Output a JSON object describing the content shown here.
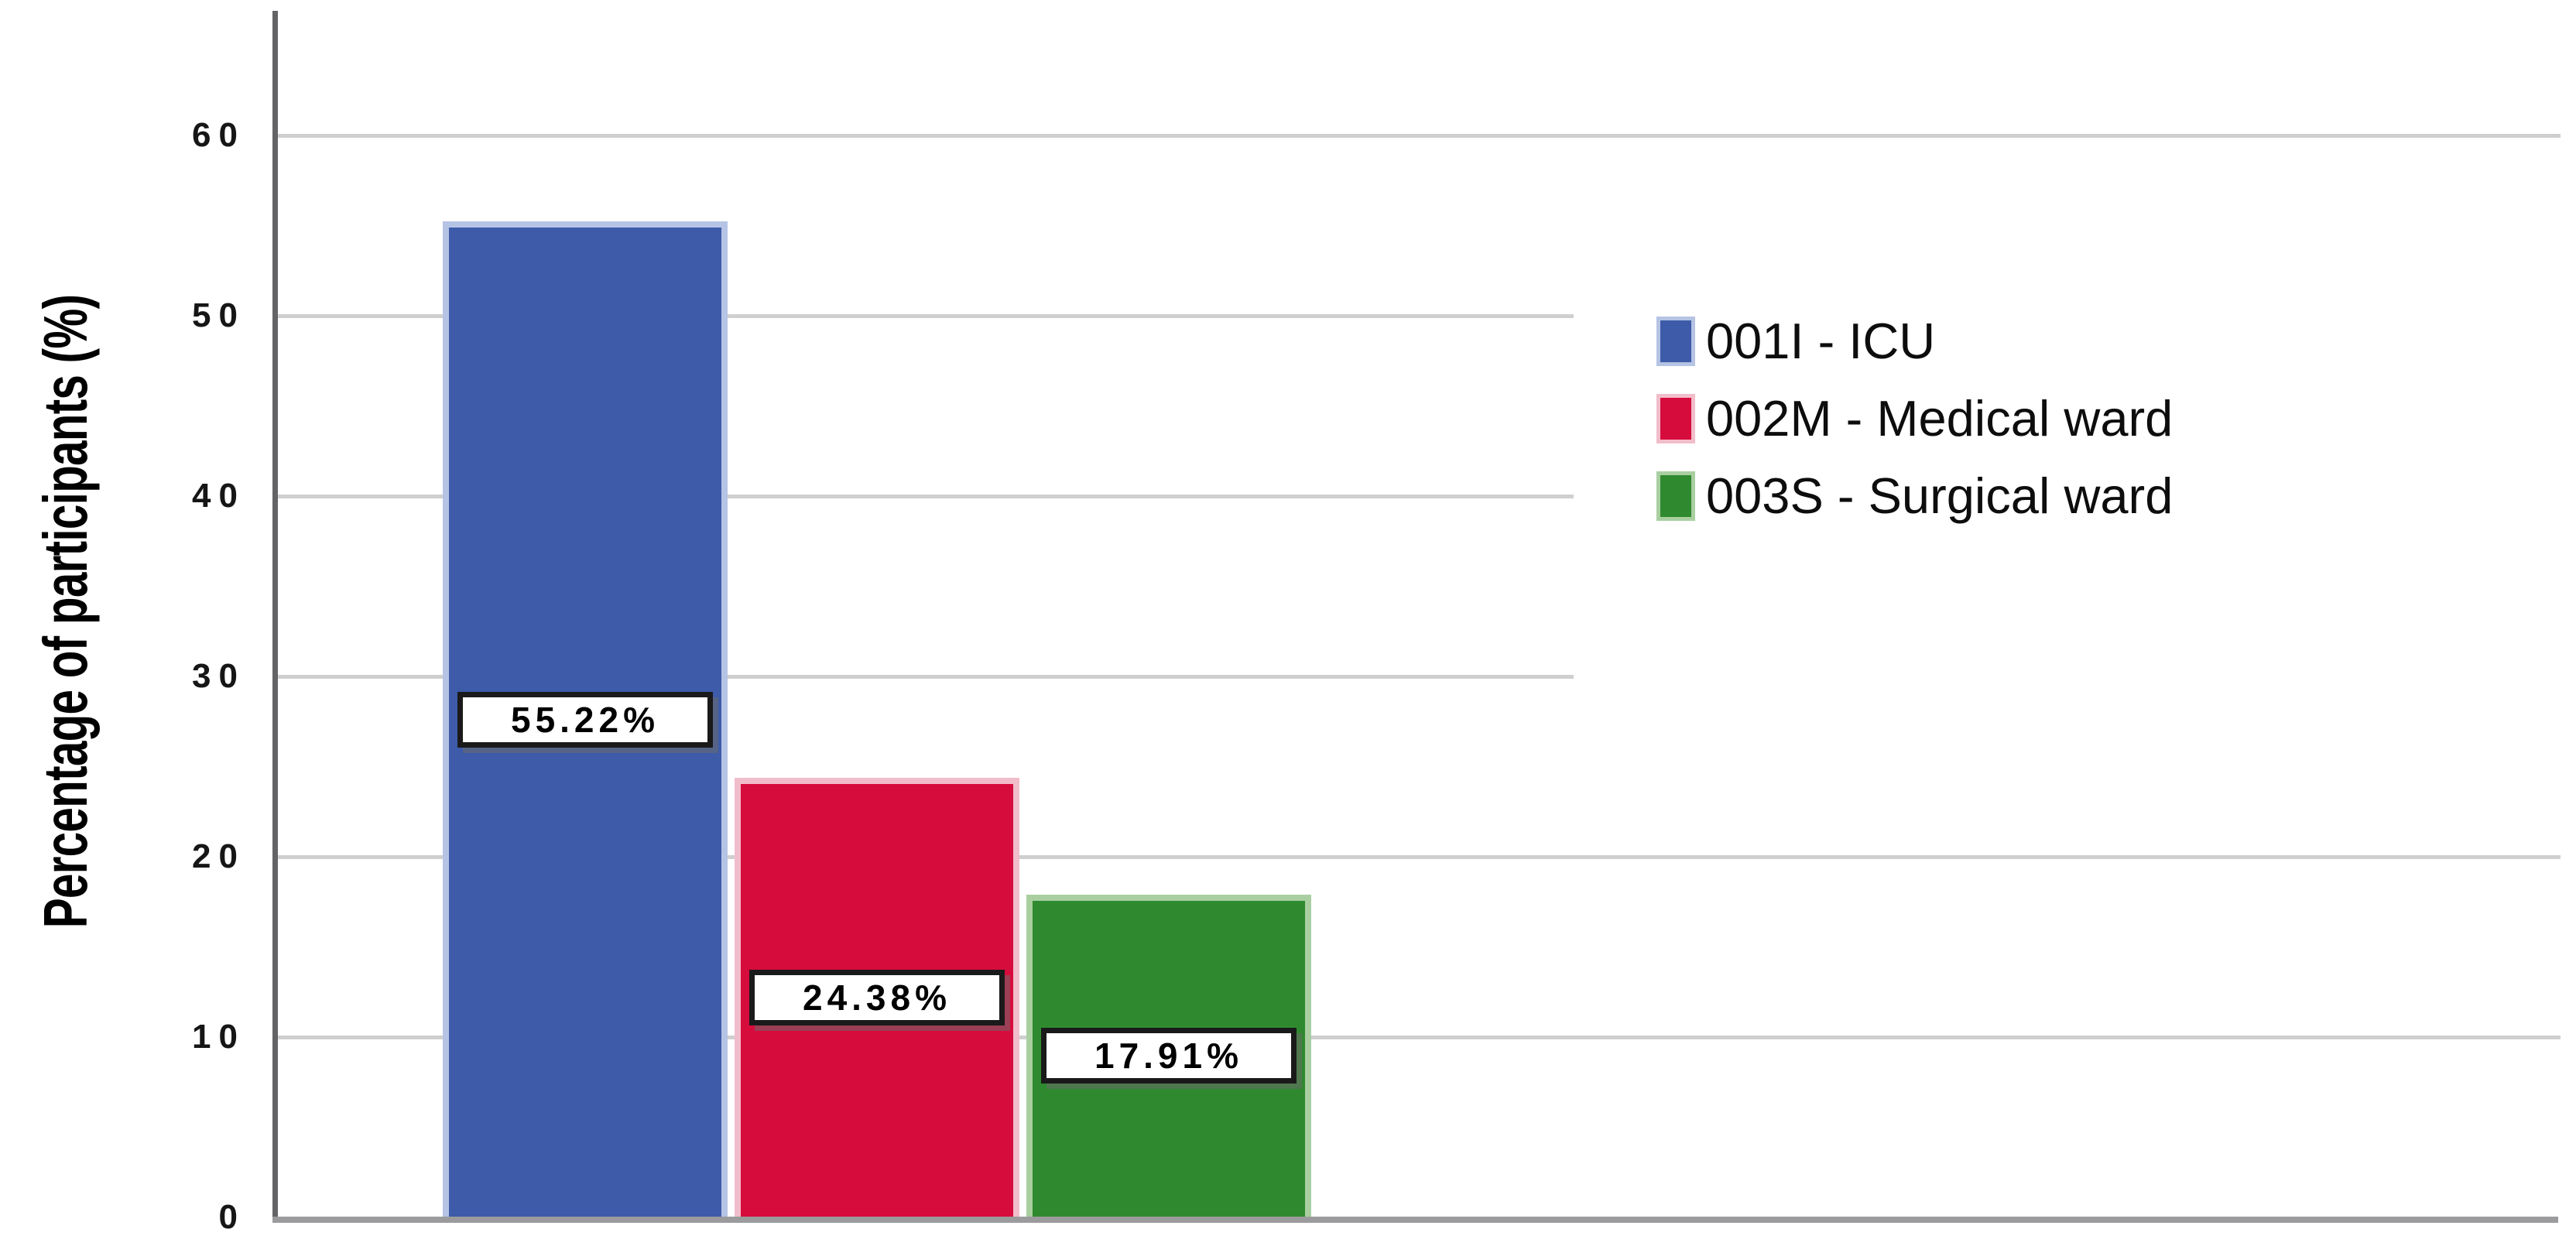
{
  "chart_data": {
    "type": "bar",
    "title": "",
    "xlabel": "",
    "ylabel": "Percentage of participants (%)",
    "ylim": [
      0,
      65
    ],
    "yticks": [
      0,
      10,
      20,
      30,
      40,
      50,
      60
    ],
    "ytick_labels": [
      "0",
      "10",
      "20",
      "30",
      "40",
      "50",
      "60"
    ],
    "grid": true,
    "legend_position": "right",
    "categories": [
      "001I - ICU",
      "002M - Medical ward",
      "003S - Surgical ward"
    ],
    "values": [
      55.22,
      24.38,
      17.91
    ],
    "bars": [
      {
        "category": "001I - ICU",
        "value": 55.22,
        "value_label": "55.22%",
        "color": "#3D5BA9",
        "edge_color": "#B5C3E4"
      },
      {
        "category": "002M - Medical ward",
        "value": 24.38,
        "value_label": "24.38%",
        "color": "#D60C3C",
        "edge_color": "#F2BDCB"
      },
      {
        "category": "003S - Surgical ward",
        "value": 17.91,
        "value_label": "17.91%",
        "color": "#2F8A2F",
        "edge_color": "#A9CFA1"
      }
    ],
    "legend": [
      {
        "label": "001I - ICU",
        "color": "#3D5BA9",
        "edge_color": "#B5C3E4"
      },
      {
        "label": "002M - Medical ward",
        "color": "#D60C3C",
        "edge_color": "#F2BDCB"
      },
      {
        "label": "003S - Surgical ward",
        "color": "#2F8A2F",
        "edge_color": "#A9CFA1"
      }
    ],
    "colors": {
      "background": "#FFFFFF",
      "gridline": "#CFCFCF",
      "y_axis_line": "#646467",
      "x_axis_line": "#9B9B9D",
      "label_box_border": "#1A1A1A",
      "text": "#161616"
    }
  }
}
